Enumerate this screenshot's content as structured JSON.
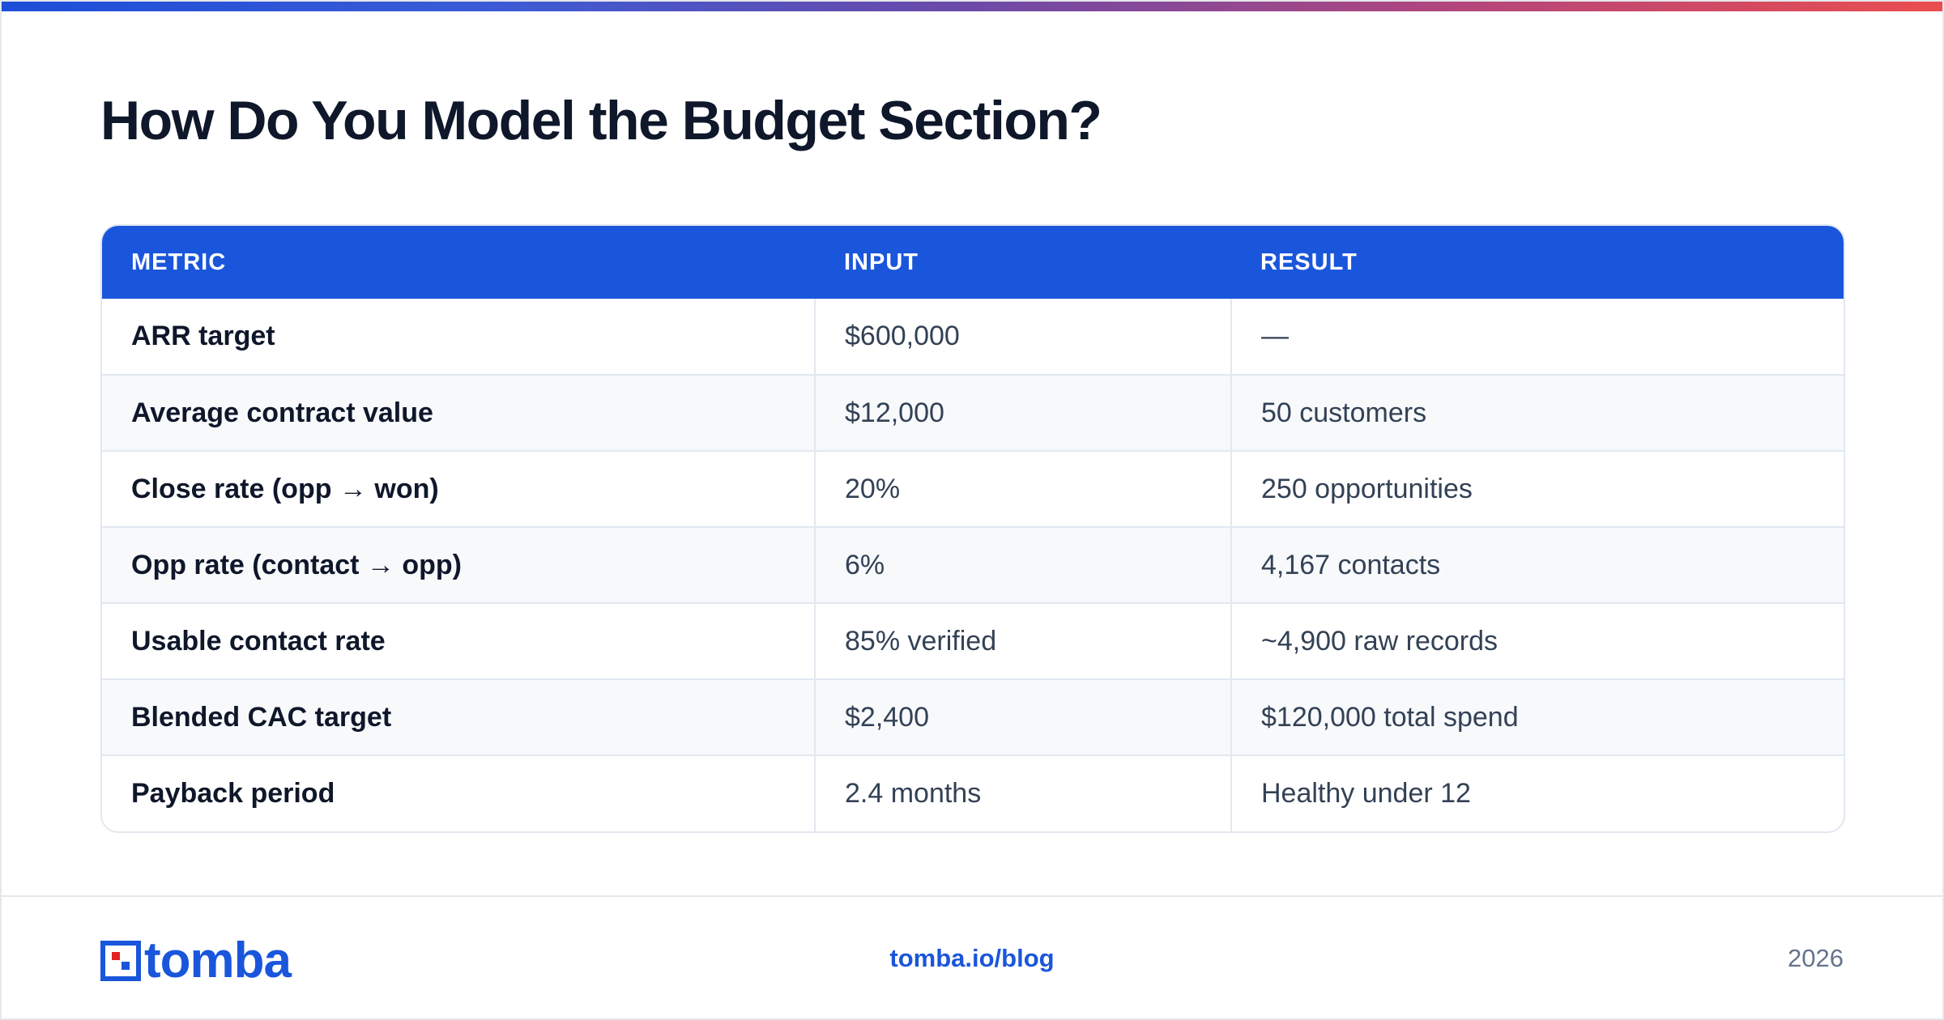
{
  "title": "How Do You Model the Budget Section?",
  "colors": {
    "header_bg": "#1a56db",
    "accent": "#1a56db",
    "logo_red": "#e02424",
    "gradient_start": "#1d4ed8",
    "gradient_end": "#ea4d4f"
  },
  "table": {
    "headers": [
      "METRIC",
      "INPUT",
      "RESULT"
    ],
    "rows": [
      {
        "metric": "ARR target",
        "input": "$600,000",
        "result": "—"
      },
      {
        "metric": "Average contract value",
        "input": "$12,000",
        "result": "50 customers"
      },
      {
        "metric": "Close rate (opp → won)",
        "input": "20%",
        "result": "250 opportunities"
      },
      {
        "metric": "Opp rate (contact → opp)",
        "input": "6%",
        "result": "4,167 contacts"
      },
      {
        "metric": "Usable contact rate",
        "input": "85% verified",
        "result": "~4,900 raw records"
      },
      {
        "metric": "Blended CAC target",
        "input": "$2,400",
        "result": "$120,000 total spend"
      },
      {
        "metric": "Payback period",
        "input": "2.4 months",
        "result": "Healthy under 12"
      }
    ]
  },
  "footer": {
    "logo_text": "tomba",
    "logo_icon": "tomba-logo-icon",
    "link": "tomba.io/blog",
    "year": "2026"
  }
}
